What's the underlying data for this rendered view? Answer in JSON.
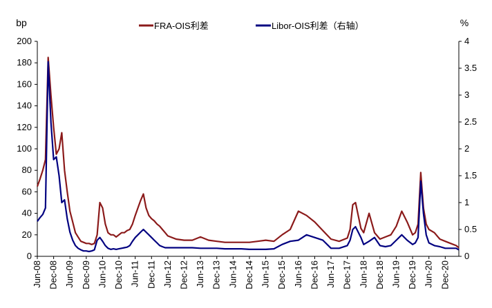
{
  "chart_data": {
    "type": "line",
    "title": "",
    "left_axis_unit": "bp",
    "right_axis_unit": "%",
    "ylim_left": [
      0,
      200
    ],
    "ylim_right": [
      0,
      4
    ],
    "yticks_left": [
      "0",
      "20",
      "40",
      "60",
      "80",
      "100",
      "120",
      "140",
      "160",
      "180",
      "200"
    ],
    "yticks_right": [
      "0",
      "0.5",
      "1",
      "1.5",
      "2",
      "2.5",
      "3",
      "3.5",
      "4"
    ],
    "xlim": [
      "2008-06",
      "2021-05"
    ],
    "xticks": [
      "Jun-08",
      "Dec-08",
      "Jun-09",
      "Dec-09",
      "Jun-10",
      "Dec-10",
      "Jun-11",
      "Dec-11",
      "Jun-12",
      "Dec-12",
      "Jun-13",
      "Dec-13",
      "Jun-14",
      "Dec-14",
      "Jun-15",
      "Dec-15",
      "Jun-16",
      "Dec-16",
      "Jun-17",
      "Dec-17",
      "Jun-18",
      "Dec-18",
      "Jun-19",
      "Dec-19",
      "Jun-20",
      "Dec-20"
    ],
    "grid": false,
    "legend_position": "top-center",
    "series": [
      {
        "name": "FRA-OIS利差",
        "axis": "left",
        "color": "#8B1A1A",
        "x": [
          "2008-06",
          "2008-07",
          "2008-08",
          "2008-09",
          "2008-10",
          "2008-11",
          "2008-12",
          "2009-01",
          "2009-02",
          "2009-03",
          "2009-04",
          "2009-05",
          "2009-06",
          "2009-07",
          "2009-08",
          "2009-09",
          "2009-10",
          "2009-11",
          "2009-12",
          "2010-01",
          "2010-02",
          "2010-03",
          "2010-04",
          "2010-05",
          "2010-06",
          "2010-07",
          "2010-08",
          "2010-09",
          "2010-10",
          "2010-11",
          "2010-12",
          "2011-01",
          "2011-02",
          "2011-03",
          "2011-04",
          "2011-05",
          "2011-06",
          "2011-07",
          "2011-08",
          "2011-09",
          "2011-10",
          "2011-11",
          "2011-12",
          "2012-01",
          "2012-02",
          "2012-03",
          "2012-04",
          "2012-05",
          "2012-06",
          "2012-09",
          "2012-12",
          "2013-03",
          "2013-06",
          "2013-09",
          "2013-12",
          "2014-03",
          "2014-06",
          "2014-09",
          "2014-12",
          "2015-03",
          "2015-06",
          "2015-09",
          "2015-12",
          "2016-03",
          "2016-06",
          "2016-09",
          "2016-12",
          "2017-03",
          "2017-06",
          "2017-09",
          "2017-12",
          "2018-01",
          "2018-02",
          "2018-03",
          "2018-04",
          "2018-05",
          "2018-06",
          "2018-08",
          "2018-10",
          "2018-12",
          "2019-02",
          "2019-04",
          "2019-06",
          "2019-08",
          "2019-10",
          "2019-12",
          "2020-01",
          "2020-02",
          "2020-03",
          "2020-04",
          "2020-05",
          "2020-06",
          "2020-08",
          "2020-10",
          "2020-12",
          "2021-02",
          "2021-04",
          "2021-05"
        ],
        "values": [
          65,
          72,
          80,
          90,
          185,
          150,
          120,
          95,
          100,
          115,
          80,
          60,
          42,
          32,
          22,
          18,
          14,
          13,
          12,
          12,
          11,
          12,
          20,
          50,
          45,
          30,
          22,
          20,
          20,
          18,
          20,
          22,
          22,
          24,
          25,
          30,
          38,
          45,
          52,
          58,
          45,
          38,
          35,
          33,
          30,
          28,
          25,
          22,
          19,
          16,
          15,
          15,
          18,
          15,
          14,
          13,
          13,
          13,
          13,
          14,
          15,
          14,
          20,
          25,
          42,
          38,
          32,
          24,
          16,
          14,
          17,
          25,
          48,
          50,
          38,
          26,
          22,
          40,
          22,
          16,
          18,
          20,
          28,
          42,
          32,
          20,
          22,
          30,
          78,
          45,
          30,
          25,
          22,
          16,
          14,
          12,
          10,
          8
        ]
      },
      {
        "name": "Libor-OIS利差（右轴）",
        "axis": "right",
        "color": "#000080",
        "x": [
          "2008-06",
          "2008-07",
          "2008-08",
          "2008-09",
          "2008-10",
          "2008-11",
          "2008-12",
          "2009-01",
          "2009-02",
          "2009-03",
          "2009-04",
          "2009-05",
          "2009-06",
          "2009-07",
          "2009-08",
          "2009-09",
          "2009-10",
          "2009-11",
          "2009-12",
          "2010-01",
          "2010-02",
          "2010-03",
          "2010-04",
          "2010-05",
          "2010-06",
          "2010-07",
          "2010-08",
          "2010-09",
          "2010-10",
          "2010-11",
          "2010-12",
          "2011-01",
          "2011-02",
          "2011-03",
          "2011-04",
          "2011-05",
          "2011-06",
          "2011-07",
          "2011-08",
          "2011-09",
          "2011-10",
          "2011-11",
          "2011-12",
          "2012-01",
          "2012-02",
          "2012-03",
          "2012-04",
          "2012-05",
          "2012-06",
          "2012-09",
          "2012-12",
          "2013-03",
          "2013-06",
          "2013-09",
          "2013-12",
          "2014-03",
          "2014-06",
          "2014-09",
          "2014-12",
          "2015-03",
          "2015-06",
          "2015-09",
          "2015-12",
          "2016-03",
          "2016-06",
          "2016-09",
          "2016-12",
          "2017-03",
          "2017-06",
          "2017-09",
          "2017-12",
          "2018-01",
          "2018-02",
          "2018-03",
          "2018-04",
          "2018-05",
          "2018-06",
          "2018-08",
          "2018-10",
          "2018-12",
          "2019-02",
          "2019-04",
          "2019-06",
          "2019-08",
          "2019-10",
          "2019-12",
          "2020-01",
          "2020-02",
          "2020-03",
          "2020-04",
          "2020-05",
          "2020-06",
          "2020-08",
          "2020-10",
          "2020-12",
          "2021-02",
          "2021-04",
          "2021-05"
        ],
        "values": [
          0.65,
          0.72,
          0.78,
          0.9,
          3.62,
          2.5,
          1.8,
          1.85,
          1.5,
          1.0,
          1.05,
          0.7,
          0.45,
          0.3,
          0.2,
          0.15,
          0.12,
          0.1,
          0.1,
          0.09,
          0.1,
          0.12,
          0.3,
          0.35,
          0.28,
          0.2,
          0.15,
          0.13,
          0.14,
          0.13,
          0.14,
          0.15,
          0.16,
          0.17,
          0.2,
          0.28,
          0.35,
          0.4,
          0.45,
          0.5,
          0.45,
          0.4,
          0.35,
          0.3,
          0.25,
          0.2,
          0.18,
          0.16,
          0.16,
          0.16,
          0.16,
          0.16,
          0.15,
          0.15,
          0.15,
          0.14,
          0.14,
          0.14,
          0.13,
          0.13,
          0.13,
          0.14,
          0.22,
          0.28,
          0.3,
          0.4,
          0.35,
          0.3,
          0.15,
          0.15,
          0.2,
          0.3,
          0.5,
          0.55,
          0.45,
          0.35,
          0.22,
          0.28,
          0.35,
          0.2,
          0.18,
          0.2,
          0.3,
          0.4,
          0.3,
          0.22,
          0.25,
          0.35,
          1.4,
          0.8,
          0.4,
          0.25,
          0.2,
          0.18,
          0.15,
          0.15,
          0.15,
          0.12
        ]
      }
    ]
  }
}
